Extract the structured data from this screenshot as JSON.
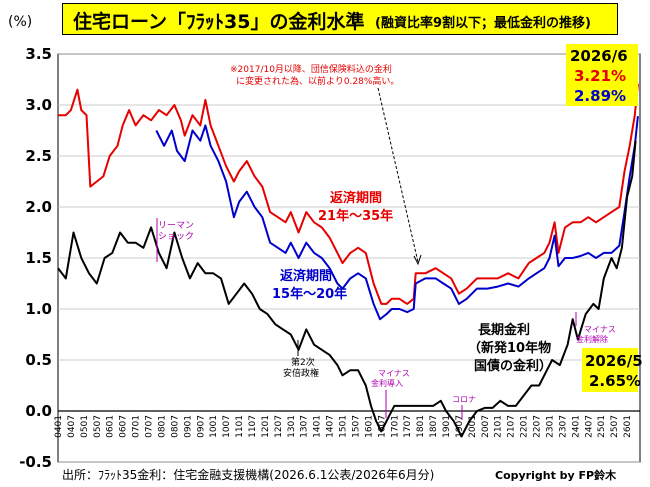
{
  "header": {
    "title": "住宅ローン「ﾌﾗｯﾄ35」の金利水準",
    "subtitle": "(融資比率9割以下；最低金利の推移)",
    "unit": "(%)"
  },
  "footer": {
    "source": "出所：ﾌﾗｯﾄ35金利：住宅金融支援機構(2026.6.1公表/2026年6月分)",
    "copyright": "Copyright by FP鈴木"
  },
  "annotations": {
    "note_line1": "※2017/10月以降、団信保険料込の金利",
    "note_line2": "に変更された為、以前より0.28%高い。",
    "red_label_1": "返済期間",
    "red_label_2": "21年～35年",
    "blue_label_1": "返済期間",
    "blue_label_2": "15年～20年",
    "long_label_1": "長期金利",
    "long_label_2": "（新発10年物",
    "long_label_3": "国債の金利）",
    "lehman_1": "リーマン",
    "lehman_2": "ショック",
    "abe_1": "第2次",
    "abe_2": "安倍政権",
    "negative_1": "マイナス",
    "negative_2": "金利導入",
    "corona": "コロナ",
    "negative_end_1": "マイナス",
    "negative_end_2": "金利解除",
    "callout_top_date": "2026/6",
    "callout_top_red": "3.21%",
    "callout_top_blue": "2.89%",
    "callout_bottom_date": "2026/5",
    "callout_bottom_value": "2.65%"
  },
  "colors": {
    "red_series": "#e60000",
    "blue_series": "#0000cc",
    "black_series": "#000000",
    "annotation_purple": "#b000b0",
    "callout_bg": "#ffff00",
    "title_bg": "#ffff00"
  },
  "chart_data": {
    "type": "line",
    "ylim": [
      -0.5,
      3.5
    ],
    "yticks": [
      "3.5",
      "3.0",
      "2.5",
      "2.0",
      "1.5",
      "1.0",
      "0.5",
      "0.0",
      "-0.5"
    ],
    "xlim": [
      2004,
      2026.5
    ],
    "xtick_labels": [
      "0401",
      "0407",
      "0501",
      "0507",
      "0601",
      "0607",
      "0701",
      "0707",
      "0801",
      "0807",
      "0901",
      "0907",
      "1001",
      "1007",
      "1101",
      "1107",
      "1201",
      "1207",
      "1301",
      "1307",
      "1401",
      "1407",
      "1501",
      "1507",
      "1601",
      "1607",
      "1701",
      "1707",
      "1801",
      "1807",
      "1901",
      "1907",
      "2001",
      "2007",
      "2101",
      "2107",
      "2201",
      "2207",
      "2301",
      "2307",
      "2401",
      "2407",
      "2501",
      "2507",
      "2601"
    ],
    "grid": true,
    "series": [
      {
        "name": "返済期間 21年～35年",
        "points": [
          [
            2004,
            2.9
          ],
          [
            2004.3,
            2.9
          ],
          [
            2004.5,
            2.95
          ],
          [
            2004.75,
            3.15
          ],
          [
            2004.9,
            2.95
          ],
          [
            2005.1,
            2.9
          ],
          [
            2005.25,
            2.2
          ],
          [
            2005.5,
            2.25
          ],
          [
            2005.75,
            2.3
          ],
          [
            2006,
            2.5
          ],
          [
            2006.3,
            2.6
          ],
          [
            2006.5,
            2.8
          ],
          [
            2006.75,
            2.95
          ],
          [
            2007,
            2.8
          ],
          [
            2007.3,
            2.9
          ],
          [
            2007.6,
            2.85
          ],
          [
            2007.9,
            2.95
          ],
          [
            2008.2,
            2.9
          ],
          [
            2008.5,
            3.0
          ],
          [
            2008.75,
            2.85
          ],
          [
            2008.9,
            2.7
          ],
          [
            2009.2,
            2.9
          ],
          [
            2009.5,
            2.8
          ],
          [
            2009.7,
            3.05
          ],
          [
            2009.9,
            2.8
          ],
          [
            2010.2,
            2.6
          ],
          [
            2010.5,
            2.4
          ],
          [
            2010.8,
            2.25
          ],
          [
            2011,
            2.35
          ],
          [
            2011.3,
            2.45
          ],
          [
            2011.6,
            2.3
          ],
          [
            2011.9,
            2.2
          ],
          [
            2012.2,
            1.95
          ],
          [
            2012.5,
            1.9
          ],
          [
            2012.8,
            1.85
          ],
          [
            2013,
            1.95
          ],
          [
            2013.3,
            1.75
          ],
          [
            2013.6,
            1.95
          ],
          [
            2013.9,
            1.85
          ],
          [
            2014.2,
            1.8
          ],
          [
            2014.5,
            1.7
          ],
          [
            2014.8,
            1.55
          ],
          [
            2015,
            1.45
          ],
          [
            2015.3,
            1.55
          ],
          [
            2015.6,
            1.6
          ],
          [
            2015.9,
            1.55
          ],
          [
            2016.2,
            1.25
          ],
          [
            2016.5,
            1.05
          ],
          [
            2016.7,
            1.05
          ],
          [
            2016.9,
            1.1
          ],
          [
            2017.2,
            1.1
          ],
          [
            2017.5,
            1.05
          ],
          [
            2017.75,
            1.1
          ],
          [
            2017.83,
            1.35
          ],
          [
            2018.2,
            1.35
          ],
          [
            2018.6,
            1.4
          ],
          [
            2018.9,
            1.35
          ],
          [
            2019.2,
            1.3
          ],
          [
            2019.5,
            1.15
          ],
          [
            2019.8,
            1.2
          ],
          [
            2020.2,
            1.3
          ],
          [
            2020.6,
            1.3
          ],
          [
            2021,
            1.3
          ],
          [
            2021.4,
            1.35
          ],
          [
            2021.8,
            1.3
          ],
          [
            2022.2,
            1.45
          ],
          [
            2022.5,
            1.5
          ],
          [
            2022.8,
            1.55
          ],
          [
            2023,
            1.65
          ],
          [
            2023.2,
            1.85
          ],
          [
            2023.35,
            1.55
          ],
          [
            2023.6,
            1.8
          ],
          [
            2023.9,
            1.85
          ],
          [
            2024.2,
            1.85
          ],
          [
            2024.5,
            1.9
          ],
          [
            2024.8,
            1.85
          ],
          [
            2025.1,
            1.9
          ],
          [
            2025.4,
            1.95
          ],
          [
            2025.7,
            2.0
          ],
          [
            2025.9,
            2.35
          ],
          [
            2026.1,
            2.6
          ],
          [
            2026.3,
            2.9
          ],
          [
            2026.42,
            3.21
          ]
        ]
      },
      {
        "name": "返済期間 15年～20年",
        "points": [
          [
            2007.8,
            2.75
          ],
          [
            2008.1,
            2.6
          ],
          [
            2008.4,
            2.75
          ],
          [
            2008.6,
            2.55
          ],
          [
            2008.9,
            2.45
          ],
          [
            2009.2,
            2.75
          ],
          [
            2009.5,
            2.65
          ],
          [
            2009.7,
            2.8
          ],
          [
            2009.9,
            2.6
          ],
          [
            2010.2,
            2.45
          ],
          [
            2010.5,
            2.25
          ],
          [
            2010.8,
            1.9
          ],
          [
            2011,
            2.05
          ],
          [
            2011.3,
            2.15
          ],
          [
            2011.6,
            2.0
          ],
          [
            2011.9,
            1.9
          ],
          [
            2012.2,
            1.65
          ],
          [
            2012.5,
            1.6
          ],
          [
            2012.8,
            1.55
          ],
          [
            2013,
            1.65
          ],
          [
            2013.3,
            1.5
          ],
          [
            2013.6,
            1.65
          ],
          [
            2013.9,
            1.55
          ],
          [
            2014.2,
            1.5
          ],
          [
            2014.5,
            1.4
          ],
          [
            2014.8,
            1.25
          ],
          [
            2015,
            1.2
          ],
          [
            2015.3,
            1.3
          ],
          [
            2015.6,
            1.35
          ],
          [
            2015.9,
            1.3
          ],
          [
            2016.2,
            1.05
          ],
          [
            2016.45,
            0.9
          ],
          [
            2016.7,
            0.95
          ],
          [
            2016.9,
            1.0
          ],
          [
            2017.2,
            1.0
          ],
          [
            2017.5,
            0.97
          ],
          [
            2017.75,
            1.0
          ],
          [
            2017.83,
            1.25
          ],
          [
            2018.2,
            1.3
          ],
          [
            2018.6,
            1.3
          ],
          [
            2018.9,
            1.25
          ],
          [
            2019.2,
            1.2
          ],
          [
            2019.5,
            1.05
          ],
          [
            2019.8,
            1.1
          ],
          [
            2020.2,
            1.2
          ],
          [
            2020.6,
            1.2
          ],
          [
            2021,
            1.22
          ],
          [
            2021.4,
            1.25
          ],
          [
            2021.8,
            1.22
          ],
          [
            2022.2,
            1.3
          ],
          [
            2022.5,
            1.35
          ],
          [
            2022.8,
            1.4
          ],
          [
            2023,
            1.5
          ],
          [
            2023.2,
            1.72
          ],
          [
            2023.35,
            1.42
          ],
          [
            2023.6,
            1.5
          ],
          [
            2023.9,
            1.5
          ],
          [
            2024.2,
            1.52
          ],
          [
            2024.5,
            1.55
          ],
          [
            2024.8,
            1.5
          ],
          [
            2025.1,
            1.55
          ],
          [
            2025.4,
            1.55
          ],
          [
            2025.7,
            1.62
          ],
          [
            2025.9,
            1.95
          ],
          [
            2026.1,
            2.3
          ],
          [
            2026.3,
            2.6
          ],
          [
            2026.42,
            2.89
          ]
        ]
      },
      {
        "name": "長期金利 (新発10年物国債の金利)",
        "points": [
          [
            2004,
            1.4
          ],
          [
            2004.3,
            1.3
          ],
          [
            2004.6,
            1.75
          ],
          [
            2004.9,
            1.5
          ],
          [
            2005.2,
            1.35
          ],
          [
            2005.5,
            1.25
          ],
          [
            2005.8,
            1.5
          ],
          [
            2006.1,
            1.55
          ],
          [
            2006.4,
            1.75
          ],
          [
            2006.7,
            1.65
          ],
          [
            2007,
            1.65
          ],
          [
            2007.3,
            1.6
          ],
          [
            2007.6,
            1.8
          ],
          [
            2007.9,
            1.55
          ],
          [
            2008.2,
            1.4
          ],
          [
            2008.5,
            1.75
          ],
          [
            2008.8,
            1.5
          ],
          [
            2009.1,
            1.3
          ],
          [
            2009.4,
            1.45
          ],
          [
            2009.7,
            1.35
          ],
          [
            2010,
            1.35
          ],
          [
            2010.3,
            1.3
          ],
          [
            2010.6,
            1.05
          ],
          [
            2010.9,
            1.15
          ],
          [
            2011.2,
            1.25
          ],
          [
            2011.5,
            1.15
          ],
          [
            2011.8,
            1.0
          ],
          [
            2012.1,
            0.95
          ],
          [
            2012.4,
            0.85
          ],
          [
            2012.7,
            0.8
          ],
          [
            2013,
            0.75
          ],
          [
            2013.3,
            0.6
          ],
          [
            2013.6,
            0.8
          ],
          [
            2013.9,
            0.65
          ],
          [
            2014.2,
            0.6
          ],
          [
            2014.5,
            0.55
          ],
          [
            2014.8,
            0.45
          ],
          [
            2015,
            0.35
          ],
          [
            2015.3,
            0.4
          ],
          [
            2015.6,
            0.4
          ],
          [
            2015.9,
            0.25
          ],
          [
            2016.1,
            0.05
          ],
          [
            2016.3,
            -0.1
          ],
          [
            2016.5,
            -0.2
          ],
          [
            2016.8,
            -0.05
          ],
          [
            2017,
            0.05
          ],
          [
            2017.3,
            0.05
          ],
          [
            2017.6,
            0.05
          ],
          [
            2017.9,
            0.05
          ],
          [
            2018.2,
            0.05
          ],
          [
            2018.5,
            0.05
          ],
          [
            2018.8,
            0.1
          ],
          [
            2019,
            0.0
          ],
          [
            2019.3,
            -0.1
          ],
          [
            2019.6,
            -0.25
          ],
          [
            2019.9,
            -0.1
          ],
          [
            2020.2,
            0.0
          ],
          [
            2020.5,
            0.03
          ],
          [
            2020.8,
            0.03
          ],
          [
            2021.1,
            0.1
          ],
          [
            2021.4,
            0.05
          ],
          [
            2021.7,
            0.05
          ],
          [
            2022,
            0.15
          ],
          [
            2022.3,
            0.25
          ],
          [
            2022.6,
            0.25
          ],
          [
            2022.9,
            0.4
          ],
          [
            2023.1,
            0.5
          ],
          [
            2023.4,
            0.45
          ],
          [
            2023.7,
            0.65
          ],
          [
            2023.9,
            0.9
          ],
          [
            2024.1,
            0.7
          ],
          [
            2024.4,
            0.95
          ],
          [
            2024.7,
            1.05
          ],
          [
            2024.9,
            1.0
          ],
          [
            2025.1,
            1.3
          ],
          [
            2025.4,
            1.5
          ],
          [
            2025.6,
            1.4
          ],
          [
            2025.8,
            1.6
          ],
          [
            2026,
            2.1
          ],
          [
            2026.2,
            2.3
          ],
          [
            2026.33,
            2.65
          ]
        ]
      }
    ]
  }
}
